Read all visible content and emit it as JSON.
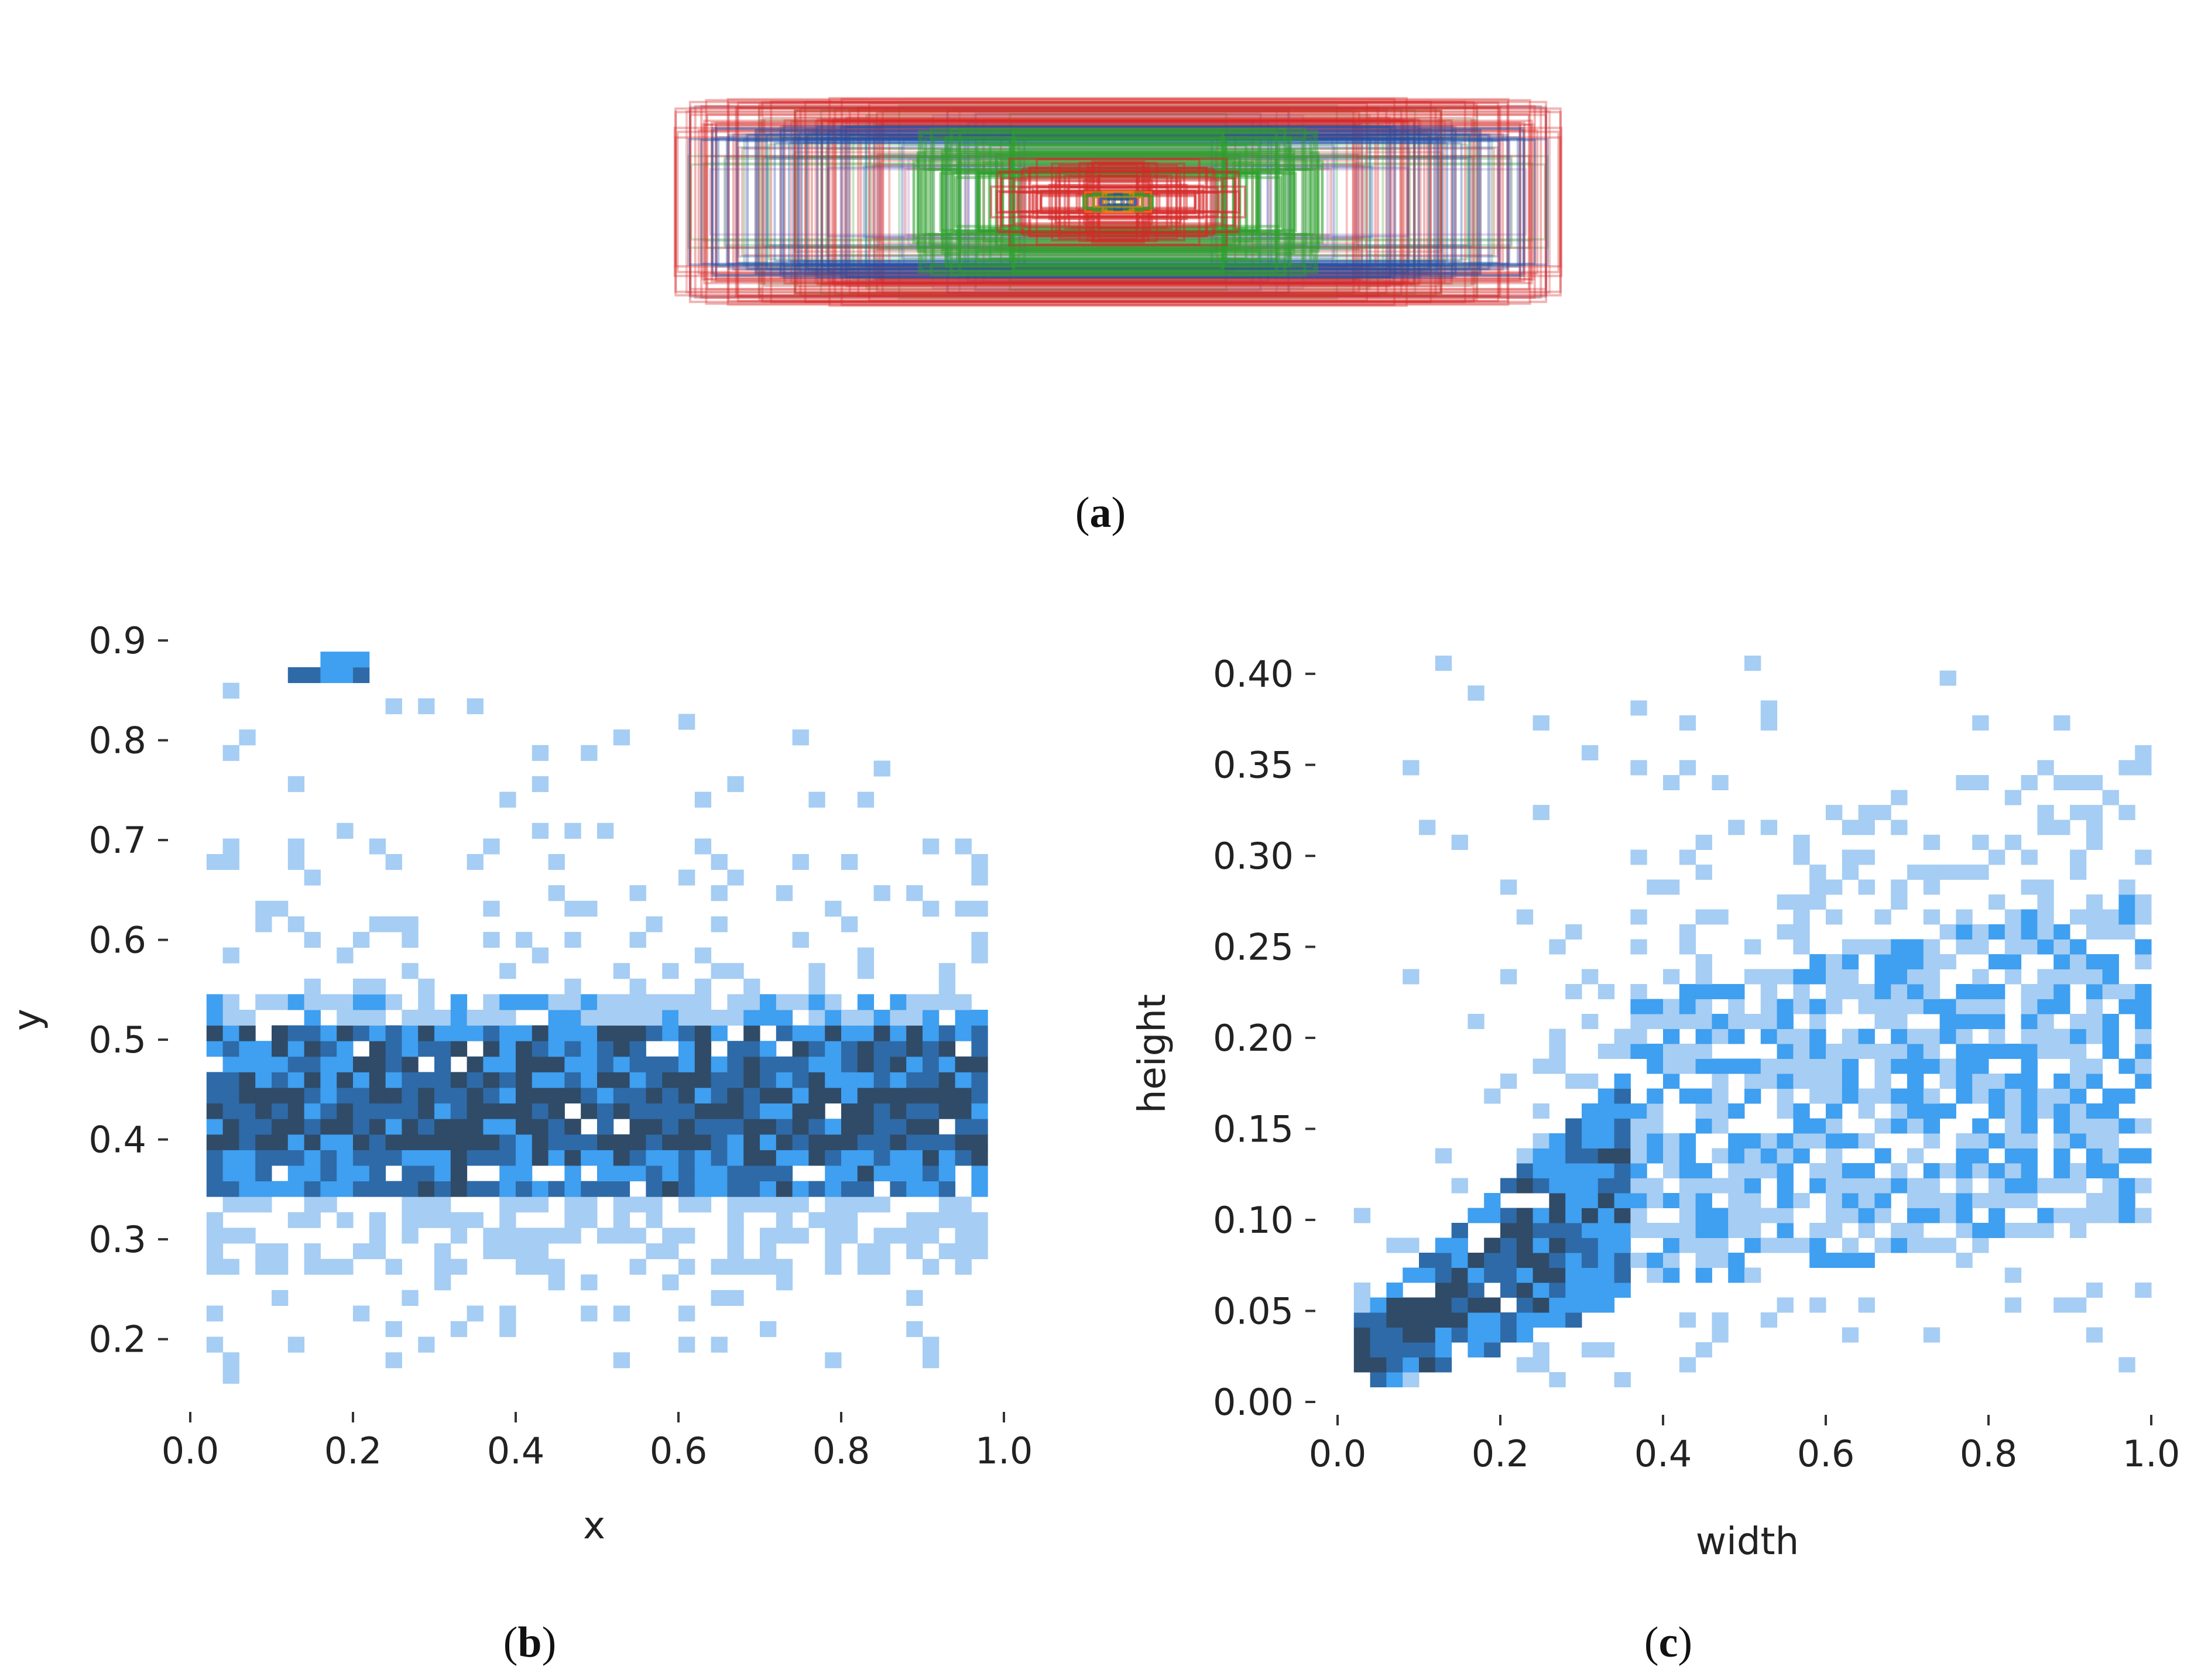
{
  "figure": {
    "caption_a": "a",
    "caption_b": "b",
    "caption_c": "c"
  },
  "chart_data": [
    {
      "id": "a",
      "type": "other",
      "description_kind": "overlaid anchor boxes",
      "box_colors": [
        "#d62728",
        "#2ca02c",
        "#1f4fa8",
        "#9467bd",
        "#e8a0a0",
        "#ff7f0e"
      ]
    },
    {
      "id": "b",
      "type": "heatmap",
      "title": "",
      "xlabel": "x",
      "ylabel": "y",
      "xlim": [
        0.0,
        1.0
      ],
      "ylim": [
        0.14,
        0.92
      ],
      "xticks": [
        "0.0",
        "0.2",
        "0.4",
        "0.6",
        "0.8",
        "1.0"
      ],
      "yticks": [
        "0.2",
        "0.3",
        "0.4",
        "0.5",
        "0.6",
        "0.7",
        "0.8",
        "0.9"
      ],
      "bins": 50,
      "density_band": {
        "x_range": [
          0.02,
          0.98
        ],
        "core_y": [
          0.38,
          0.52
        ],
        "peak_y": 0.42,
        "spread_y": [
          0.26,
          0.56
        ]
      },
      "outlier_cluster": {
        "x": [
          0.12,
          0.22
        ],
        "y": [
          0.86,
          0.88
        ]
      },
      "colors": [
        "#a6cdf3",
        "#3f9ff0",
        "#2e6aa8",
        "#2f4b68"
      ]
    },
    {
      "id": "c",
      "type": "heatmap",
      "title": "",
      "xlabel": "width",
      "ylabel": "height",
      "xlim": [
        0.0,
        1.0
      ],
      "ylim": [
        0.0,
        0.41
      ],
      "xticks": [
        "0.0",
        "0.2",
        "0.4",
        "0.6",
        "0.8",
        "1.0"
      ],
      "yticks": [
        "0.00",
        "0.05",
        "0.10",
        "0.15",
        "0.20",
        "0.25",
        "0.30",
        "0.35",
        "0.40"
      ],
      "bins": 50,
      "density_trend": {
        "start": [
          0.02,
          0.02
        ],
        "dense_until": [
          0.35,
          0.12
        ],
        "spread_end": [
          1.0,
          0.28
        ]
      },
      "colors": [
        "#a6cdf3",
        "#3f9ff0",
        "#2e6aa8",
        "#2f4b68"
      ]
    }
  ]
}
